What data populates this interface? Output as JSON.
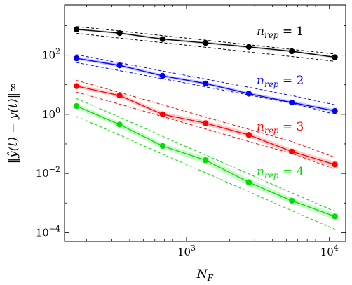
{
  "chart_data": {
    "type": "line",
    "xlabel": "N_F",
    "ylabel": "‖ŷ(t) − y(t)‖∞",
    "xscale": "log",
    "yscale": "log",
    "xlim": [
      140,
      13000
    ],
    "ylim": [
      5e-05,
      5000
    ],
    "x_ticks": [
      {
        "value": 1000,
        "base": "10",
        "exp": "3"
      },
      {
        "value": 10000,
        "base": "10",
        "exp": "4"
      }
    ],
    "y_ticks": [
      {
        "value": 0.0001,
        "base": "10",
        "exp": "−4"
      },
      {
        "value": 0.01,
        "base": "10",
        "exp": "−2"
      },
      {
        "value": 1,
        "base": "10",
        "exp": "0"
      },
      {
        "value": 100,
        "base": "10",
        "exp": "2"
      }
    ],
    "grid": false,
    "x": [
      170,
      340,
      680,
      1360,
      2730,
      5460,
      10920
    ],
    "series": [
      {
        "name": "n_rep = 1",
        "label_base": "n",
        "label_sub": "rep",
        "label_eq": " = 1",
        "color": "#000000",
        "band_color": "#777777",
        "values": [
          750,
          560,
          350,
          260,
          190,
          135,
          85
        ],
        "band_low": [
          700,
          520,
          320,
          240,
          175,
          125,
          78
        ],
        "band_high": [
          810,
          600,
          380,
          285,
          205,
          145,
          92
        ],
        "fit_lower": [
          550,
          380,
          265,
          185,
          128,
          90,
          62
        ],
        "fit_upper": [
          930,
          660,
          460,
          322,
          225,
          157,
          110
        ]
      },
      {
        "name": "n_rep = 2",
        "label_base": "n",
        "label_sub": "rep",
        "label_eq": " = 2",
        "color": "#0000ff",
        "band_color": "#6a6aff",
        "values": [
          78,
          45,
          20,
          11,
          5,
          2.5,
          1.3
        ],
        "band_low": [
          70,
          40,
          18,
          9.8,
          4.5,
          2.2,
          1.15
        ],
        "band_high": [
          88,
          51,
          22.5,
          12.5,
          5.6,
          2.85,
          1.5
        ],
        "fit_lower": [
          56,
          30,
          16,
          8.5,
          4.5,
          2.4,
          1.0
        ],
        "fit_upper": [
          104,
          55,
          29,
          15.5,
          8.2,
          4.3,
          2.1
        ]
      },
      {
        "name": "n_rep = 3",
        "label_base": "n",
        "label_sub": "rep",
        "label_eq": " = 3",
        "color": "#ff0000",
        "band_color": "#ff7a7a",
        "values": [
          9,
          4.3,
          1.0,
          0.5,
          0.2,
          0.055,
          0.02
        ],
        "band_low": [
          7.8,
          3.7,
          0.85,
          0.42,
          0.165,
          0.045,
          0.016
        ],
        "band_high": [
          10.5,
          5.0,
          1.2,
          0.6,
          0.245,
          0.067,
          0.025
        ],
        "fit_lower": [
          5.6,
          2.2,
          0.84,
          0.32,
          0.12,
          0.047,
          0.014
        ],
        "fit_upper": [
          14,
          5.5,
          2.1,
          0.8,
          0.31,
          0.12,
          0.035
        ]
      },
      {
        "name": "n_rep = 4",
        "label_base": "n",
        "label_sub": "rep",
        "label_eq": " = 4",
        "color": "#00dd00",
        "band_color": "#7cf07c",
        "values": [
          1.9,
          0.45,
          0.085,
          0.028,
          0.005,
          0.0012,
          0.00035
        ],
        "band_low": [
          1.55,
          0.36,
          0.068,
          0.021,
          0.0038,
          0.00095,
          0.00027
        ],
        "band_high": [
          2.3,
          0.55,
          0.105,
          0.035,
          0.0066,
          0.0015,
          0.00045
        ],
        "fit_lower": [
          0.85,
          0.2,
          0.045,
          0.0105,
          0.0024,
          0.00055,
          0.00013
        ],
        "fit_upper": [
          3.4,
          0.8,
          0.18,
          0.042,
          0.0096,
          0.0022,
          0.00052
        ]
      }
    ]
  }
}
